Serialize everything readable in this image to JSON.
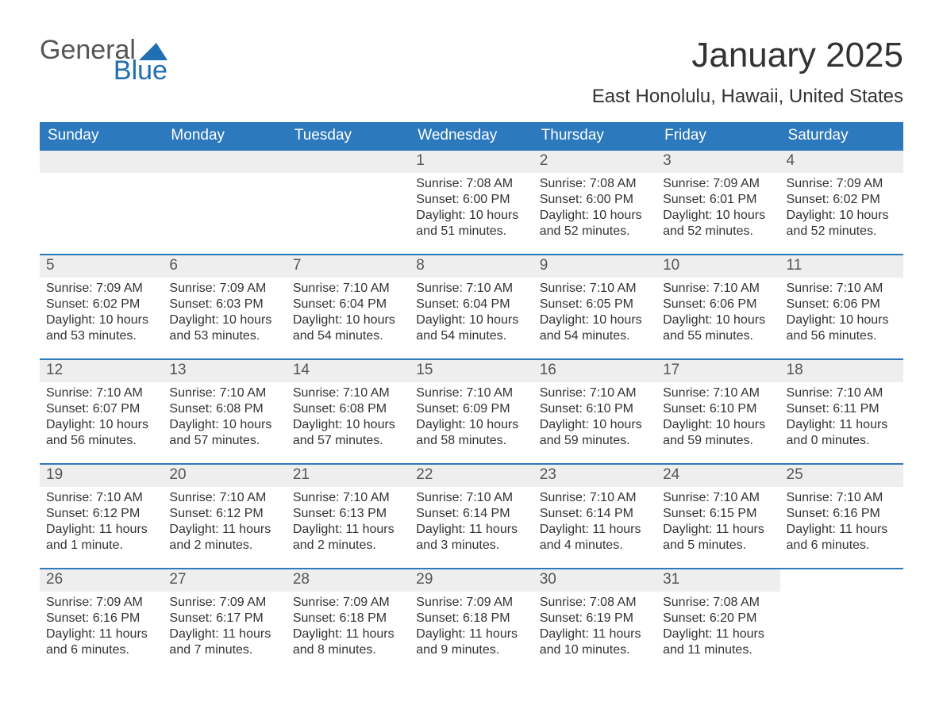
{
  "logo": {
    "word1": "General",
    "word2": "Blue",
    "flag_color": "#1f6fb2",
    "text_gray": "#555555",
    "text_blue": "#1f6fb2"
  },
  "title": "January 2025",
  "location": "East Honolulu, Hawaii, United States",
  "colors": {
    "header_bg": "#2c79bd",
    "header_text": "#ffffff",
    "row_border": "#2c79bd",
    "daynum_bg": "#eeeeee",
    "daynum_text": "#555555",
    "body_text": "#333333",
    "page_bg": "#ffffff"
  },
  "fonts": {
    "title_size_pt": 33,
    "location_size_pt": 18,
    "weekday_size_pt": 14,
    "daynum_size_pt": 14,
    "body_size_pt": 12
  },
  "weekdays": [
    "Sunday",
    "Monday",
    "Tuesday",
    "Wednesday",
    "Thursday",
    "Friday",
    "Saturday"
  ],
  "weeks": [
    [
      null,
      null,
      null,
      {
        "n": "1",
        "sunrise": "Sunrise: 7:08 AM",
        "sunset": "Sunset: 6:00 PM",
        "daylight": "Daylight: 10 hours and 51 minutes."
      },
      {
        "n": "2",
        "sunrise": "Sunrise: 7:08 AM",
        "sunset": "Sunset: 6:00 PM",
        "daylight": "Daylight: 10 hours and 52 minutes."
      },
      {
        "n": "3",
        "sunrise": "Sunrise: 7:09 AM",
        "sunset": "Sunset: 6:01 PM",
        "daylight": "Daylight: 10 hours and 52 minutes."
      },
      {
        "n": "4",
        "sunrise": "Sunrise: 7:09 AM",
        "sunset": "Sunset: 6:02 PM",
        "daylight": "Daylight: 10 hours and 52 minutes."
      }
    ],
    [
      {
        "n": "5",
        "sunrise": "Sunrise: 7:09 AM",
        "sunset": "Sunset: 6:02 PM",
        "daylight": "Daylight: 10 hours and 53 minutes."
      },
      {
        "n": "6",
        "sunrise": "Sunrise: 7:09 AM",
        "sunset": "Sunset: 6:03 PM",
        "daylight": "Daylight: 10 hours and 53 minutes."
      },
      {
        "n": "7",
        "sunrise": "Sunrise: 7:10 AM",
        "sunset": "Sunset: 6:04 PM",
        "daylight": "Daylight: 10 hours and 54 minutes."
      },
      {
        "n": "8",
        "sunrise": "Sunrise: 7:10 AM",
        "sunset": "Sunset: 6:04 PM",
        "daylight": "Daylight: 10 hours and 54 minutes."
      },
      {
        "n": "9",
        "sunrise": "Sunrise: 7:10 AM",
        "sunset": "Sunset: 6:05 PM",
        "daylight": "Daylight: 10 hours and 54 minutes."
      },
      {
        "n": "10",
        "sunrise": "Sunrise: 7:10 AM",
        "sunset": "Sunset: 6:06 PM",
        "daylight": "Daylight: 10 hours and 55 minutes."
      },
      {
        "n": "11",
        "sunrise": "Sunrise: 7:10 AM",
        "sunset": "Sunset: 6:06 PM",
        "daylight": "Daylight: 10 hours and 56 minutes."
      }
    ],
    [
      {
        "n": "12",
        "sunrise": "Sunrise: 7:10 AM",
        "sunset": "Sunset: 6:07 PM",
        "daylight": "Daylight: 10 hours and 56 minutes."
      },
      {
        "n": "13",
        "sunrise": "Sunrise: 7:10 AM",
        "sunset": "Sunset: 6:08 PM",
        "daylight": "Daylight: 10 hours and 57 minutes."
      },
      {
        "n": "14",
        "sunrise": "Sunrise: 7:10 AM",
        "sunset": "Sunset: 6:08 PM",
        "daylight": "Daylight: 10 hours and 57 minutes."
      },
      {
        "n": "15",
        "sunrise": "Sunrise: 7:10 AM",
        "sunset": "Sunset: 6:09 PM",
        "daylight": "Daylight: 10 hours and 58 minutes."
      },
      {
        "n": "16",
        "sunrise": "Sunrise: 7:10 AM",
        "sunset": "Sunset: 6:10 PM",
        "daylight": "Daylight: 10 hours and 59 minutes."
      },
      {
        "n": "17",
        "sunrise": "Sunrise: 7:10 AM",
        "sunset": "Sunset: 6:10 PM",
        "daylight": "Daylight: 10 hours and 59 minutes."
      },
      {
        "n": "18",
        "sunrise": "Sunrise: 7:10 AM",
        "sunset": "Sunset: 6:11 PM",
        "daylight": "Daylight: 11 hours and 0 minutes."
      }
    ],
    [
      {
        "n": "19",
        "sunrise": "Sunrise: 7:10 AM",
        "sunset": "Sunset: 6:12 PM",
        "daylight": "Daylight: 11 hours and 1 minute."
      },
      {
        "n": "20",
        "sunrise": "Sunrise: 7:10 AM",
        "sunset": "Sunset: 6:12 PM",
        "daylight": "Daylight: 11 hours and 2 minutes."
      },
      {
        "n": "21",
        "sunrise": "Sunrise: 7:10 AM",
        "sunset": "Sunset: 6:13 PM",
        "daylight": "Daylight: 11 hours and 2 minutes."
      },
      {
        "n": "22",
        "sunrise": "Sunrise: 7:10 AM",
        "sunset": "Sunset: 6:14 PM",
        "daylight": "Daylight: 11 hours and 3 minutes."
      },
      {
        "n": "23",
        "sunrise": "Sunrise: 7:10 AM",
        "sunset": "Sunset: 6:14 PM",
        "daylight": "Daylight: 11 hours and 4 minutes."
      },
      {
        "n": "24",
        "sunrise": "Sunrise: 7:10 AM",
        "sunset": "Sunset: 6:15 PM",
        "daylight": "Daylight: 11 hours and 5 minutes."
      },
      {
        "n": "25",
        "sunrise": "Sunrise: 7:10 AM",
        "sunset": "Sunset: 6:16 PM",
        "daylight": "Daylight: 11 hours and 6 minutes."
      }
    ],
    [
      {
        "n": "26",
        "sunrise": "Sunrise: 7:09 AM",
        "sunset": "Sunset: 6:16 PM",
        "daylight": "Daylight: 11 hours and 6 minutes."
      },
      {
        "n": "27",
        "sunrise": "Sunrise: 7:09 AM",
        "sunset": "Sunset: 6:17 PM",
        "daylight": "Daylight: 11 hours and 7 minutes."
      },
      {
        "n": "28",
        "sunrise": "Sunrise: 7:09 AM",
        "sunset": "Sunset: 6:18 PM",
        "daylight": "Daylight: 11 hours and 8 minutes."
      },
      {
        "n": "29",
        "sunrise": "Sunrise: 7:09 AM",
        "sunset": "Sunset: 6:18 PM",
        "daylight": "Daylight: 11 hours and 9 minutes."
      },
      {
        "n": "30",
        "sunrise": "Sunrise: 7:08 AM",
        "sunset": "Sunset: 6:19 PM",
        "daylight": "Daylight: 11 hours and 10 minutes."
      },
      {
        "n": "31",
        "sunrise": "Sunrise: 7:08 AM",
        "sunset": "Sunset: 6:20 PM",
        "daylight": "Daylight: 11 hours and 11 minutes."
      },
      null
    ]
  ]
}
